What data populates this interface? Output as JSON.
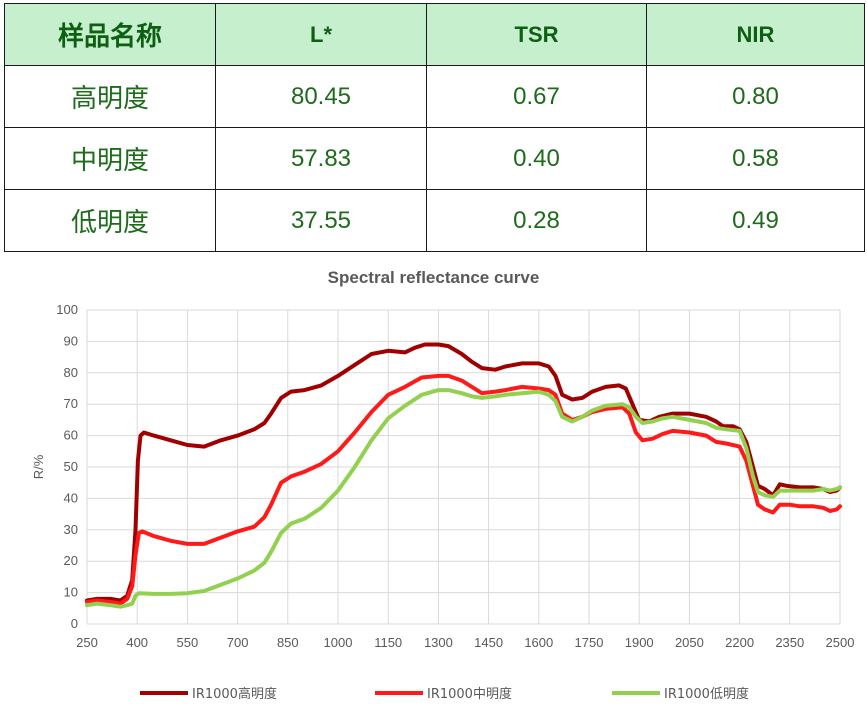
{
  "table": {
    "headers": [
      "样品名称",
      "L*",
      "TSR",
      "NIR"
    ],
    "rows": [
      [
        "高明度",
        "80.45",
        "0.67",
        "0.80"
      ],
      [
        "中明度",
        "57.83",
        "0.40",
        "0.58"
      ],
      [
        "低明度",
        "37.55",
        "0.28",
        "0.49"
      ]
    ]
  },
  "chart_data": {
    "type": "line",
    "title": "Spectral reflectance curve",
    "xlabel": "",
    "ylabel": "R/%",
    "xlim": [
      250,
      2500
    ],
    "ylim": [
      0,
      100
    ],
    "x_ticks": [
      250,
      400,
      550,
      700,
      850,
      1000,
      1150,
      1300,
      1450,
      1600,
      1750,
      1900,
      2050,
      2200,
      2350,
      2500
    ],
    "y_ticks": [
      0,
      10,
      20,
      30,
      40,
      50,
      60,
      70,
      80,
      90,
      100
    ],
    "grid": true,
    "legend_position": "bottom",
    "series": [
      {
        "name": "IR1000高明度",
        "color": "#a00000",
        "points": [
          [
            250,
            7.5
          ],
          [
            280,
            8
          ],
          [
            320,
            8
          ],
          [
            350,
            7.5
          ],
          [
            370,
            9
          ],
          [
            385,
            14
          ],
          [
            395,
            30
          ],
          [
            402,
            52
          ],
          [
            410,
            60
          ],
          [
            420,
            61
          ],
          [
            450,
            60
          ],
          [
            500,
            58.5
          ],
          [
            550,
            57
          ],
          [
            600,
            56.5
          ],
          [
            650,
            58.5
          ],
          [
            700,
            60
          ],
          [
            750,
            62
          ],
          [
            780,
            64
          ],
          [
            800,
            67
          ],
          [
            830,
            72
          ],
          [
            860,
            74
          ],
          [
            900,
            74.5
          ],
          [
            950,
            76
          ],
          [
            1000,
            79
          ],
          [
            1050,
            82.5
          ],
          [
            1100,
            86
          ],
          [
            1150,
            87
          ],
          [
            1200,
            86.5
          ],
          [
            1230,
            88
          ],
          [
            1260,
            89
          ],
          [
            1300,
            89
          ],
          [
            1330,
            88.5
          ],
          [
            1370,
            86
          ],
          [
            1400,
            83.5
          ],
          [
            1430,
            81.5
          ],
          [
            1470,
            81
          ],
          [
            1500,
            82
          ],
          [
            1550,
            83
          ],
          [
            1600,
            83
          ],
          [
            1630,
            82
          ],
          [
            1650,
            79
          ],
          [
            1670,
            73
          ],
          [
            1700,
            71.5
          ],
          [
            1730,
            72
          ],
          [
            1760,
            74
          ],
          [
            1800,
            75.5
          ],
          [
            1840,
            76
          ],
          [
            1860,
            75
          ],
          [
            1880,
            70
          ],
          [
            1900,
            65
          ],
          [
            1930,
            64.5
          ],
          [
            1960,
            66
          ],
          [
            2000,
            67
          ],
          [
            2050,
            67
          ],
          [
            2100,
            66
          ],
          [
            2130,
            64.5
          ],
          [
            2150,
            63
          ],
          [
            2180,
            63
          ],
          [
            2200,
            62
          ],
          [
            2220,
            58
          ],
          [
            2240,
            50
          ],
          [
            2255,
            44
          ],
          [
            2275,
            43
          ],
          [
            2300,
            41
          ],
          [
            2320,
            44.5
          ],
          [
            2340,
            44
          ],
          [
            2380,
            43.5
          ],
          [
            2420,
            43.5
          ],
          [
            2450,
            43
          ],
          [
            2470,
            42
          ],
          [
            2490,
            42.5
          ],
          [
            2500,
            43.5
          ]
        ]
      },
      {
        "name": "IR1000中明度",
        "color": "#ff1a1a",
        "points": [
          [
            250,
            7
          ],
          [
            280,
            7.5
          ],
          [
            320,
            7
          ],
          [
            350,
            6.5
          ],
          [
            370,
            8
          ],
          [
            385,
            12
          ],
          [
            395,
            22
          ],
          [
            405,
            29
          ],
          [
            415,
            29.5
          ],
          [
            450,
            28
          ],
          [
            500,
            26.5
          ],
          [
            550,
            25.5
          ],
          [
            600,
            25.5
          ],
          [
            650,
            27.5
          ],
          [
            700,
            29.5
          ],
          [
            750,
            31
          ],
          [
            780,
            34
          ],
          [
            800,
            38
          ],
          [
            830,
            45
          ],
          [
            860,
            47
          ],
          [
            900,
            48.5
          ],
          [
            950,
            51
          ],
          [
            1000,
            55
          ],
          [
            1050,
            61
          ],
          [
            1100,
            67.5
          ],
          [
            1150,
            73
          ],
          [
            1200,
            75.5
          ],
          [
            1250,
            78.5
          ],
          [
            1300,
            79
          ],
          [
            1330,
            79
          ],
          [
            1370,
            77.5
          ],
          [
            1400,
            75.5
          ],
          [
            1430,
            73.5
          ],
          [
            1470,
            74
          ],
          [
            1500,
            74.5
          ],
          [
            1550,
            75.5
          ],
          [
            1600,
            75
          ],
          [
            1630,
            74.5
          ],
          [
            1650,
            73
          ],
          [
            1670,
            67
          ],
          [
            1700,
            65
          ],
          [
            1730,
            66
          ],
          [
            1760,
            67.5
          ],
          [
            1800,
            68.5
          ],
          [
            1850,
            69
          ],
          [
            1870,
            67
          ],
          [
            1890,
            61
          ],
          [
            1910,
            58.5
          ],
          [
            1940,
            59
          ],
          [
            1970,
            60.5
          ],
          [
            2000,
            61.5
          ],
          [
            2050,
            61
          ],
          [
            2100,
            60
          ],
          [
            2130,
            58
          ],
          [
            2160,
            57.5
          ],
          [
            2200,
            56.5
          ],
          [
            2220,
            52
          ],
          [
            2240,
            44
          ],
          [
            2255,
            38
          ],
          [
            2275,
            36.5
          ],
          [
            2300,
            35.5
          ],
          [
            2320,
            38
          ],
          [
            2350,
            38
          ],
          [
            2380,
            37.5
          ],
          [
            2420,
            37.5
          ],
          [
            2450,
            37
          ],
          [
            2470,
            36
          ],
          [
            2490,
            36.5
          ],
          [
            2500,
            37.5
          ]
        ]
      },
      {
        "name": "IR1000低明度",
        "color": "#92d050",
        "points": [
          [
            250,
            6
          ],
          [
            280,
            6.5
          ],
          [
            320,
            6
          ],
          [
            350,
            5.5
          ],
          [
            370,
            6
          ],
          [
            385,
            6.5
          ],
          [
            395,
            9
          ],
          [
            405,
            9.8
          ],
          [
            450,
            9.6
          ],
          [
            500,
            9.6
          ],
          [
            550,
            9.8
          ],
          [
            600,
            10.5
          ],
          [
            650,
            12.5
          ],
          [
            700,
            14.5
          ],
          [
            750,
            17
          ],
          [
            780,
            19.5
          ],
          [
            800,
            23
          ],
          [
            830,
            29
          ],
          [
            860,
            32
          ],
          [
            900,
            33.5
          ],
          [
            950,
            37
          ],
          [
            1000,
            42.5
          ],
          [
            1050,
            50
          ],
          [
            1100,
            58.5
          ],
          [
            1150,
            65.5
          ],
          [
            1200,
            69.5
          ],
          [
            1250,
            73
          ],
          [
            1300,
            74.5
          ],
          [
            1330,
            74.5
          ],
          [
            1370,
            73.5
          ],
          [
            1400,
            72.5
          ],
          [
            1430,
            72
          ],
          [
            1470,
            72.5
          ],
          [
            1500,
            73
          ],
          [
            1550,
            73.5
          ],
          [
            1600,
            74
          ],
          [
            1630,
            73
          ],
          [
            1650,
            71
          ],
          [
            1670,
            66
          ],
          [
            1700,
            64.5
          ],
          [
            1730,
            66
          ],
          [
            1760,
            68
          ],
          [
            1800,
            69.5
          ],
          [
            1850,
            70
          ],
          [
            1870,
            69
          ],
          [
            1890,
            66
          ],
          [
            1910,
            64
          ],
          [
            1940,
            64.5
          ],
          [
            1970,
            65.5
          ],
          [
            2000,
            66
          ],
          [
            2050,
            65
          ],
          [
            2100,
            64
          ],
          [
            2130,
            62.5
          ],
          [
            2160,
            62
          ],
          [
            2200,
            61.5
          ],
          [
            2220,
            56
          ],
          [
            2240,
            47
          ],
          [
            2255,
            42
          ],
          [
            2275,
            41
          ],
          [
            2300,
            40.5
          ],
          [
            2320,
            42.5
          ],
          [
            2350,
            42.5
          ],
          [
            2380,
            42.5
          ],
          [
            2420,
            42.5
          ],
          [
            2450,
            43
          ],
          [
            2470,
            42.5
          ],
          [
            2490,
            43
          ],
          [
            2500,
            43.5
          ]
        ]
      }
    ]
  }
}
